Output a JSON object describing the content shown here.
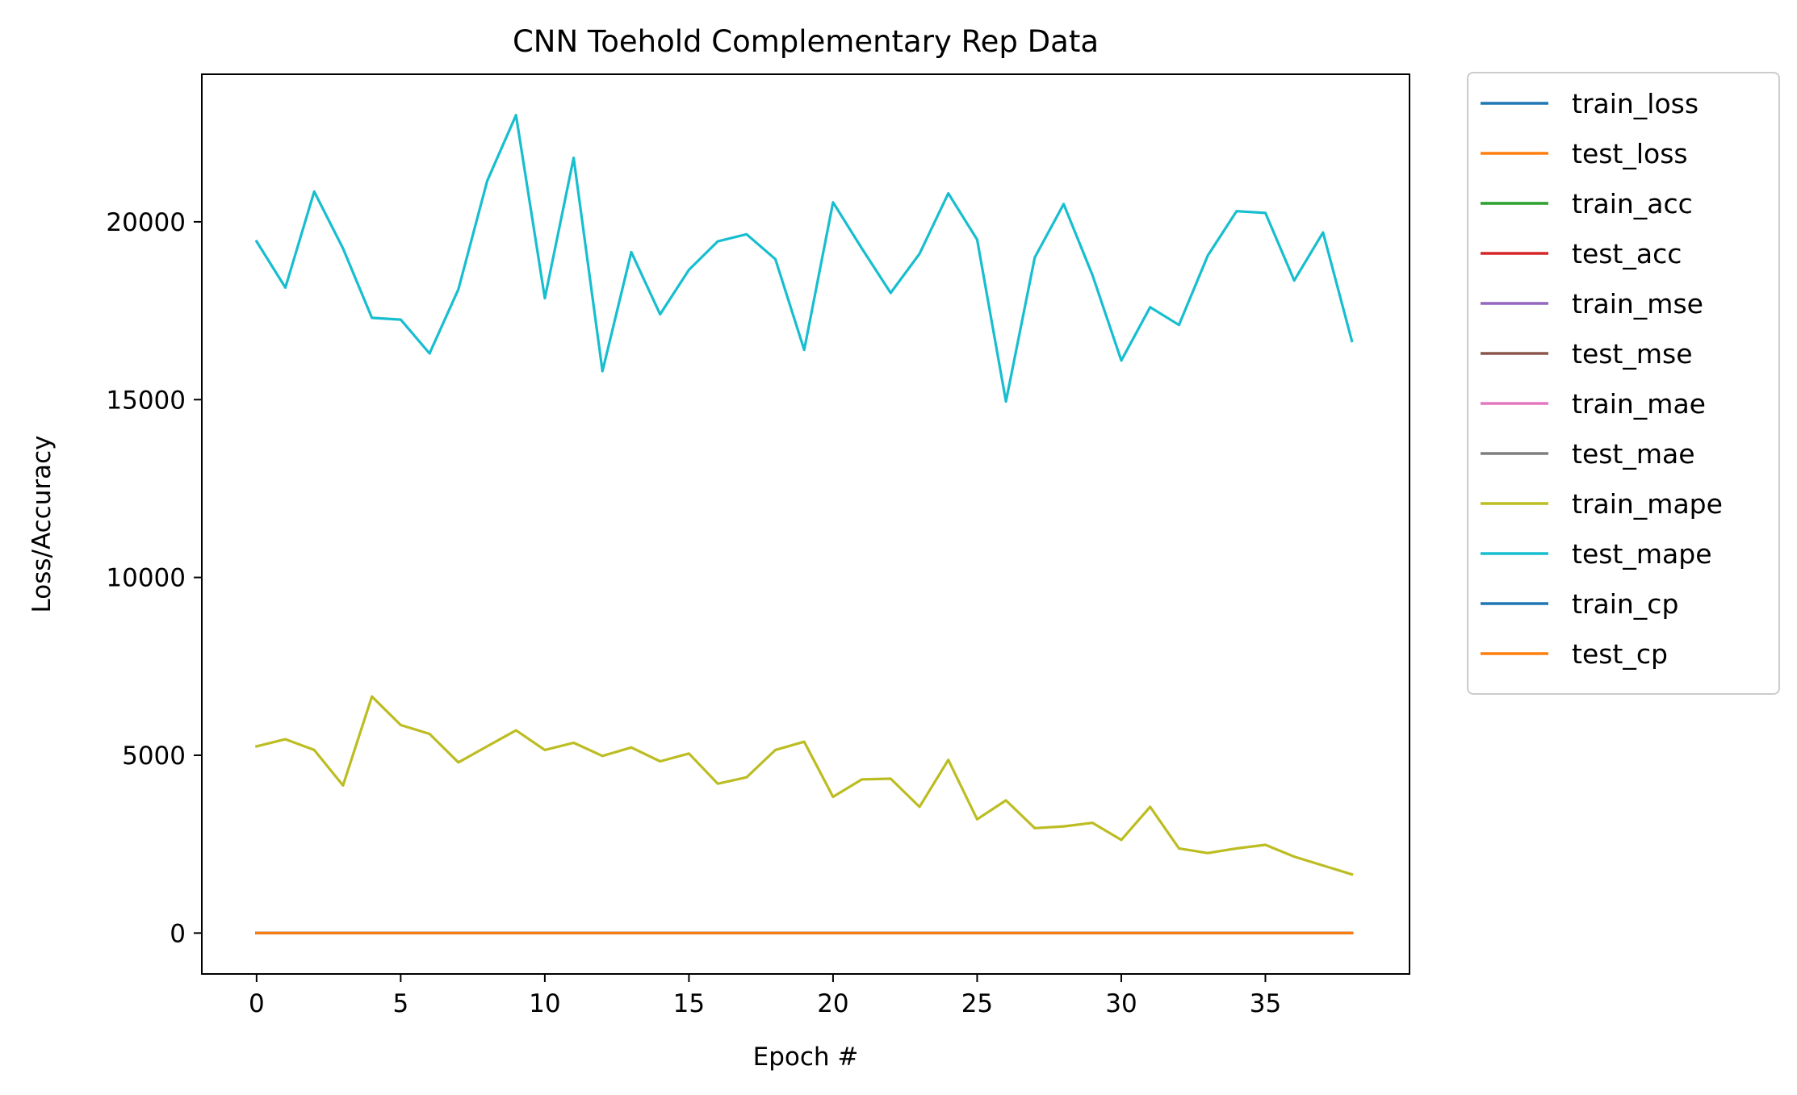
{
  "chart_data": {
    "type": "line",
    "title": "CNN Toehold Complementary Rep Data",
    "xlabel": "Epoch #",
    "ylabel": "Loss/Accuracy",
    "xlim": [
      -1.9,
      40
    ],
    "ylim": [
      -1150,
      24150
    ],
    "xticks": [
      0,
      5,
      10,
      15,
      20,
      25,
      30,
      35
    ],
    "yticks": [
      0,
      5000,
      10000,
      15000,
      20000
    ],
    "grid": false,
    "legend_position": "outside-right",
    "x": [
      0,
      1,
      2,
      3,
      4,
      5,
      6,
      7,
      8,
      9,
      10,
      11,
      12,
      13,
      14,
      15,
      16,
      17,
      18,
      19,
      20,
      21,
      22,
      23,
      24,
      25,
      26,
      27,
      28,
      29,
      30,
      31,
      32,
      33,
      34,
      35,
      36,
      37,
      38
    ],
    "series": [
      {
        "name": "train_loss",
        "color": "#1f77b4",
        "values": [
          0,
          0,
          0,
          0,
          0,
          0,
          0,
          0,
          0,
          0,
          0,
          0,
          0,
          0,
          0,
          0,
          0,
          0,
          0,
          0,
          0,
          0,
          0,
          0,
          0,
          0,
          0,
          0,
          0,
          0,
          0,
          0,
          0,
          0,
          0,
          0,
          0,
          0,
          0
        ]
      },
      {
        "name": "test_loss",
        "color": "#ff7f0e",
        "values": [
          0,
          0,
          0,
          0,
          0,
          0,
          0,
          0,
          0,
          0,
          0,
          0,
          0,
          0,
          0,
          0,
          0,
          0,
          0,
          0,
          0,
          0,
          0,
          0,
          0,
          0,
          0,
          0,
          0,
          0,
          0,
          0,
          0,
          0,
          0,
          0,
          0,
          0,
          0
        ]
      },
      {
        "name": "train_acc",
        "color": "#2ca02c",
        "values": [
          0,
          0,
          0,
          0,
          0,
          0,
          0,
          0,
          0,
          0,
          0,
          0,
          0,
          0,
          0,
          0,
          0,
          0,
          0,
          0,
          0,
          0,
          0,
          0,
          0,
          0,
          0,
          0,
          0,
          0,
          0,
          0,
          0,
          0,
          0,
          0,
          0,
          0,
          0
        ]
      },
      {
        "name": "test_acc",
        "color": "#d62728",
        "values": [
          0,
          0,
          0,
          0,
          0,
          0,
          0,
          0,
          0,
          0,
          0,
          0,
          0,
          0,
          0,
          0,
          0,
          0,
          0,
          0,
          0,
          0,
          0,
          0,
          0,
          0,
          0,
          0,
          0,
          0,
          0,
          0,
          0,
          0,
          0,
          0,
          0,
          0,
          0
        ]
      },
      {
        "name": "train_mse",
        "color": "#9467bd",
        "values": [
          0,
          0,
          0,
          0,
          0,
          0,
          0,
          0,
          0,
          0,
          0,
          0,
          0,
          0,
          0,
          0,
          0,
          0,
          0,
          0,
          0,
          0,
          0,
          0,
          0,
          0,
          0,
          0,
          0,
          0,
          0,
          0,
          0,
          0,
          0,
          0,
          0,
          0,
          0
        ]
      },
      {
        "name": "test_mse",
        "color": "#8c564b",
        "values": [
          0,
          0,
          0,
          0,
          0,
          0,
          0,
          0,
          0,
          0,
          0,
          0,
          0,
          0,
          0,
          0,
          0,
          0,
          0,
          0,
          0,
          0,
          0,
          0,
          0,
          0,
          0,
          0,
          0,
          0,
          0,
          0,
          0,
          0,
          0,
          0,
          0,
          0,
          0
        ]
      },
      {
        "name": "train_mae",
        "color": "#e377c2",
        "values": [
          0,
          0,
          0,
          0,
          0,
          0,
          0,
          0,
          0,
          0,
          0,
          0,
          0,
          0,
          0,
          0,
          0,
          0,
          0,
          0,
          0,
          0,
          0,
          0,
          0,
          0,
          0,
          0,
          0,
          0,
          0,
          0,
          0,
          0,
          0,
          0,
          0,
          0,
          0
        ]
      },
      {
        "name": "test_mae",
        "color": "#7f7f7f",
        "values": [
          0,
          0,
          0,
          0,
          0,
          0,
          0,
          0,
          0,
          0,
          0,
          0,
          0,
          0,
          0,
          0,
          0,
          0,
          0,
          0,
          0,
          0,
          0,
          0,
          0,
          0,
          0,
          0,
          0,
          0,
          0,
          0,
          0,
          0,
          0,
          0,
          0,
          0,
          0
        ]
      },
      {
        "name": "train_mape",
        "color": "#bcbd22",
        "values": [
          5250,
          5450,
          5150,
          4150,
          6650,
          5850,
          5600,
          4800,
          5250,
          5700,
          5150,
          5350,
          4980,
          5220,
          4830,
          5050,
          4200,
          4380,
          5150,
          5380,
          3830,
          4320,
          4340,
          3550,
          4870,
          3200,
          3730,
          2950,
          3000,
          3100,
          2620,
          3550,
          2380,
          2250,
          2380,
          2480,
          2150,
          1900,
          1650
        ]
      },
      {
        "name": "test_mape",
        "color": "#17becf",
        "values": [
          19450,
          18150,
          20850,
          19250,
          17300,
          17250,
          16300,
          18100,
          21150,
          23000,
          17850,
          21800,
          15800,
          19150,
          17400,
          18650,
          19450,
          19650,
          18950,
          16400,
          20550,
          19250,
          18000,
          19100,
          20800,
          19500,
          14950,
          19000,
          20500,
          18500,
          16100,
          17600,
          17100,
          19050,
          20300,
          20250,
          18350,
          19700,
          16650
        ]
      },
      {
        "name": "train_cp",
        "color": "#1f77b4",
        "values": [
          0,
          0,
          0,
          0,
          0,
          0,
          0,
          0,
          0,
          0,
          0,
          0,
          0,
          0,
          0,
          0,
          0,
          0,
          0,
          0,
          0,
          0,
          0,
          0,
          0,
          0,
          0,
          0,
          0,
          0,
          0,
          0,
          0,
          0,
          0,
          0,
          0,
          0,
          0
        ]
      },
      {
        "name": "test_cp",
        "color": "#ff7f0e",
        "values": [
          0,
          0,
          0,
          0,
          0,
          0,
          0,
          0,
          0,
          0,
          0,
          0,
          0,
          0,
          0,
          0,
          0,
          0,
          0,
          0,
          0,
          0,
          0,
          0,
          0,
          0,
          0,
          0,
          0,
          0,
          0,
          0,
          0,
          0,
          0,
          0,
          0,
          0,
          0
        ]
      }
    ]
  }
}
